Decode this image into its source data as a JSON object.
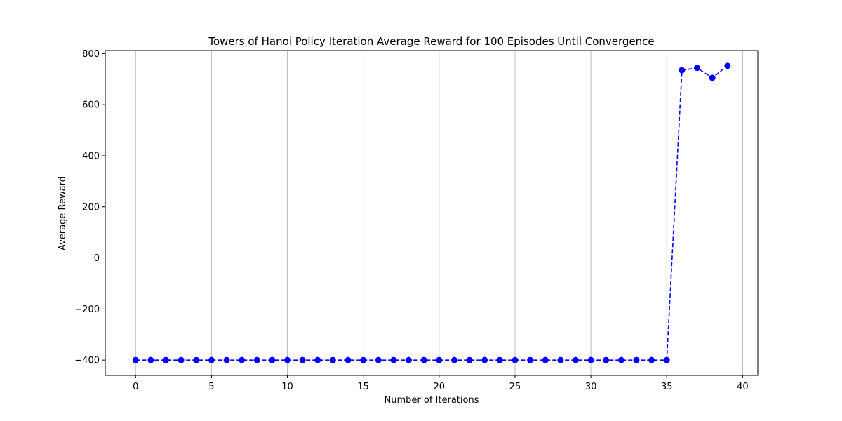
{
  "chart_data": {
    "type": "line",
    "title": "Towers of Hanoi Policy Iteration Average Reward for 100 Episodes Until Convergence",
    "xlabel": "Number of Iterations",
    "ylabel": "Average Reward",
    "xlim": [
      -2,
      41
    ],
    "ylim": [
      -460,
      812
    ],
    "xticks": [
      0,
      5,
      10,
      15,
      20,
      25,
      30,
      35,
      40
    ],
    "yticks": [
      -400,
      -200,
      0,
      200,
      400,
      600,
      800
    ],
    "xtick_labels": [
      "0",
      "5",
      "10",
      "15",
      "20",
      "25",
      "30",
      "35",
      "40"
    ],
    "ytick_labels": [
      "−400",
      "−200",
      "0",
      "200",
      "400",
      "600",
      "800"
    ],
    "grid": "vertical",
    "line_color": "#0000ff",
    "line_style": "dashed",
    "marker": "circle",
    "series": [
      {
        "x": [
          0,
          1,
          2,
          3,
          4,
          5,
          6,
          7,
          8,
          9,
          10,
          11,
          12,
          13,
          14,
          15,
          16,
          17,
          18,
          19,
          20,
          21,
          22,
          23,
          24,
          25,
          26,
          27,
          28,
          29,
          30,
          31,
          32,
          33,
          34,
          35,
          36,
          37,
          38,
          39
        ],
        "values": [
          -400,
          -400,
          -400,
          -400,
          -400,
          -400,
          -400,
          -400,
          -400,
          -400,
          -400,
          -400,
          -400,
          -400,
          -400,
          -400,
          -400,
          -400,
          -400,
          -400,
          -400,
          -400,
          -400,
          -400,
          -400,
          -400,
          -400,
          -400,
          -400,
          -400,
          -400,
          -400,
          -400,
          -400,
          -400,
          -400,
          735,
          744,
          705,
          752
        ]
      }
    ]
  }
}
